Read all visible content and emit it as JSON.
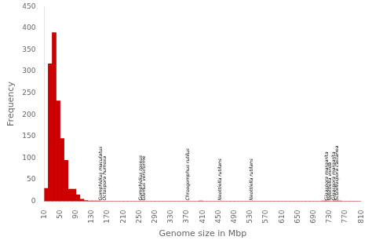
{
  "chart_data": {
    "type": "histogram",
    "xlabel": "Genome size in Mbp",
    "ylabel": "Frequency",
    "bins": [
      10,
      20,
      30,
      40,
      50,
      60,
      70,
      80,
      90,
      100,
      110,
      120,
      130,
      140,
      150,
      160,
      170,
      180,
      190,
      200,
      210,
      220,
      230,
      240,
      250,
      260,
      270,
      280,
      290,
      300,
      310,
      320,
      330,
      340,
      350,
      360,
      370,
      380,
      390,
      400,
      410,
      420,
      430,
      440,
      450,
      460,
      470,
      480,
      490,
      500,
      510,
      520,
      530,
      540,
      550,
      560,
      570,
      580,
      590,
      600,
      610,
      620,
      630,
      640,
      650,
      660,
      670,
      680,
      690,
      700,
      710,
      720,
      730,
      740,
      750,
      760,
      770,
      780,
      790,
      800,
      810
    ],
    "values": [
      30,
      318,
      390,
      232,
      145,
      95,
      28,
      28,
      15,
      5,
      2,
      1,
      1,
      1,
      0,
      0,
      0,
      0,
      0,
      0,
      0,
      0,
      0,
      0,
      0,
      0,
      0,
      0,
      0,
      0,
      0,
      0,
      0,
      0,
      0,
      0,
      0,
      0,
      0,
      1,
      0,
      0,
      0,
      0,
      0,
      0,
      0,
      0,
      0,
      0,
      0,
      0,
      0,
      0,
      0,
      0,
      0,
      0,
      0,
      0,
      0,
      0,
      0,
      0,
      0,
      0,
      0,
      0,
      0,
      0,
      1,
      1,
      0,
      1,
      1,
      0,
      0,
      0,
      0,
      0
    ],
    "color": "#cc0000",
    "xlim": [
      10,
      810
    ],
    "xticks": [
      10,
      50,
      90,
      130,
      170,
      210,
      250,
      290,
      330,
      370,
      410,
      450,
      490,
      530,
      570,
      610,
      650,
      690,
      730,
      770,
      810
    ],
    "ylim": [
      0,
      450
    ],
    "yticks": [
      0,
      50,
      100,
      150,
      200,
      250,
      300,
      350,
      400,
      450
    ],
    "grid": false,
    "annotations": [
      {
        "text": "Gomphidius maculatus",
        "x": 153,
        "y": 2
      },
      {
        "text": "Octospora humosa",
        "x": 162,
        "y": 2
      },
      {
        "text": "Gomphidius roseus",
        "x": 253,
        "y": 2
      },
      {
        "text": "Glomus versiforme",
        "x": 262,
        "y": 2
      },
      {
        "text": "Chroogomphus rutilus",
        "x": 373,
        "y": 2
      },
      {
        "text": "Neottiella rutilans",
        "x": 453,
        "y": 2
      },
      {
        "text": "Neottiella rutilans",
        "x": 533,
        "y": 2
      },
      {
        "text": "Gigaspora margarita",
        "x": 723,
        "y": 2
      },
      {
        "text": "Neottiella vivida",
        "x": 732,
        "y": 2
      },
      {
        "text": "Gigaspora margarita",
        "x": 741,
        "y": 2
      },
      {
        "text": "Scutellospora castanea",
        "x": 750,
        "y": 2
      }
    ]
  }
}
